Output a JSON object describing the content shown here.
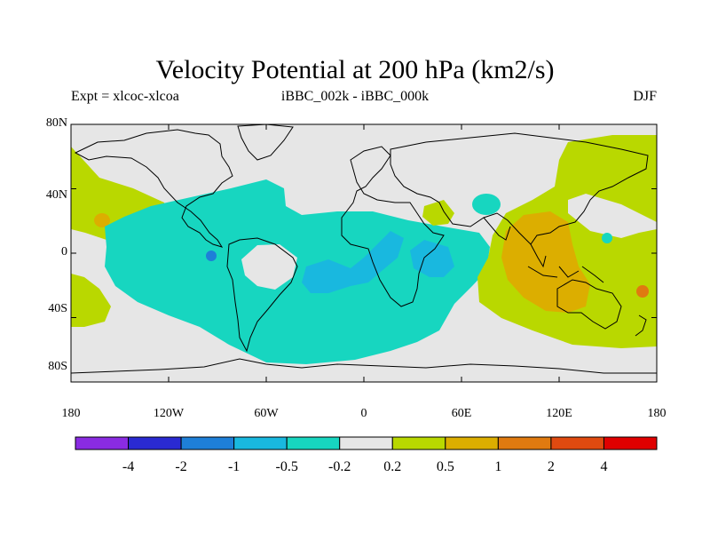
{
  "title": "Velocity Potential at 200 hPa (km2/s)",
  "left_subtitle": "Expt = xlcoc-xlcoa",
  "center_subtitle": "iBBC_002k - iBBC_000k",
  "right_subtitle": "DJF",
  "lat_ticks": [
    {
      "label": "80N",
      "lat": 80
    },
    {
      "label": "40N",
      "lat": 40
    },
    {
      "label": "0",
      "lat": 0
    },
    {
      "label": "40S",
      "lat": -40
    },
    {
      "label": "80S",
      "lat": -80
    }
  ],
  "lon_ticks": [
    {
      "label": "180",
      "lon": -180
    },
    {
      "label": "120W",
      "lon": -120
    },
    {
      "label": "60W",
      "lon": -60
    },
    {
      "label": "0",
      "lon": 0
    },
    {
      "label": "60E",
      "lon": 60
    },
    {
      "label": "120E",
      "lon": 120
    },
    {
      "label": "180",
      "lon": 180
    }
  ],
  "colorbar": {
    "colors": [
      "#8a2be2",
      "#2a2ad2",
      "#1e7fd8",
      "#19b8df",
      "#17d6c0",
      "#e6e6e6",
      "#b9d800",
      "#dcae00",
      "#e07a10",
      "#e04a10",
      "#e00000"
    ],
    "labels": [
      "-4",
      "-2",
      "-1",
      "-0.5",
      "-0.2",
      "0.2",
      "0.5",
      "1",
      "2",
      "4"
    ]
  },
  "colors": {
    "ocean": "#e6e6e6",
    "neg_weak": "#17d6c0",
    "neg_mod": "#19b8df",
    "neg_strong": "#1e7fd8",
    "pos_weak": "#b9d800",
    "pos_mod": "#dcae00",
    "pos_strong": "#e07a10"
  }
}
